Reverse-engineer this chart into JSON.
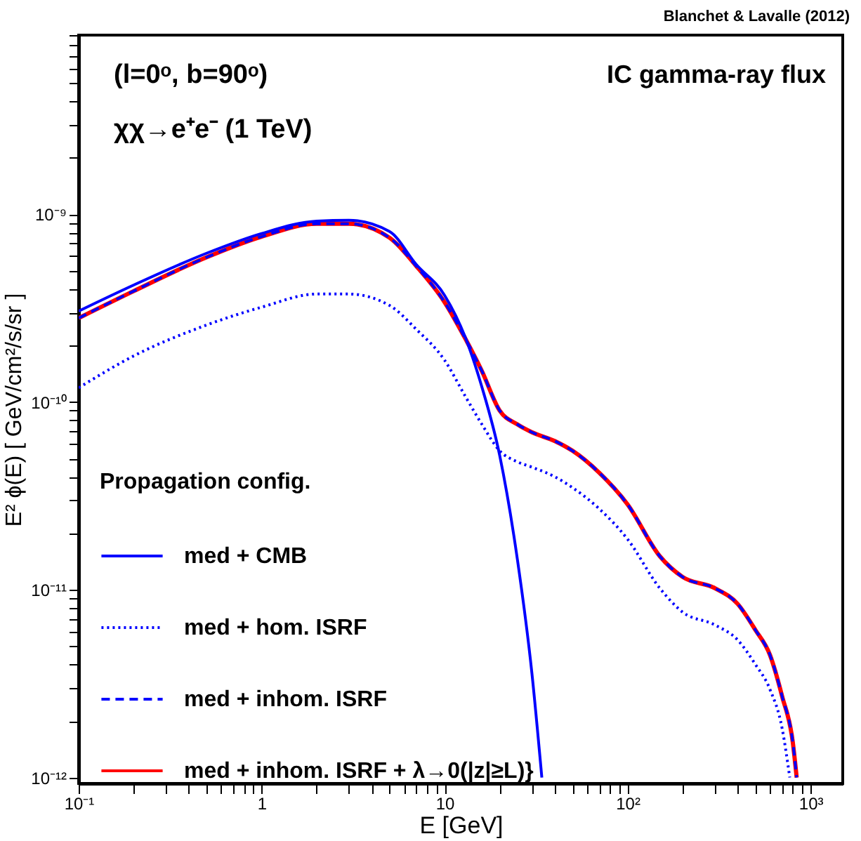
{
  "chart_data": {
    "type": "line",
    "title": "IC gamma-ray flux",
    "xlabel": "E [GeV]",
    "ylabel": "E² ϕ(E)  [ GeV/cm²/s/sr ]",
    "legend_title": "Propagation config.",
    "annotations": [
      "Blanchet & Lavalle (2012)",
      "(l=0ᵒ, b=90ᵒ)",
      "χχ→e⁺e⁻ (1 TeV)"
    ],
    "log": "xy",
    "legend": "bottom left",
    "xlim": [
      0.1,
      1500
    ],
    "ylim": [
      9.3e-13,
      9e-09
    ],
    "xticks": [
      {
        "value": 0.1,
        "label": "10⁻¹"
      },
      {
        "value": 0.2,
        "label": null
      },
      {
        "value": 0.3,
        "label": null
      },
      {
        "value": 0.4,
        "label": null
      },
      {
        "value": 0.5,
        "label": null
      },
      {
        "value": 0.6,
        "label": null
      },
      {
        "value": 0.7,
        "label": null
      },
      {
        "value": 0.8,
        "label": null
      },
      {
        "value": 0.9,
        "label": null
      },
      1,
      {
        "value": 2,
        "label": null
      },
      {
        "value": 3,
        "label": null
      },
      {
        "value": 4,
        "label": null
      },
      {
        "value": 5,
        "label": null
      },
      {
        "value": 6,
        "label": null
      },
      {
        "value": 7,
        "label": null
      },
      {
        "value": 8,
        "label": null
      },
      {
        "value": 9,
        "label": null
      },
      10,
      {
        "value": 20,
        "label": null
      },
      {
        "value": 30,
        "label": null
      },
      {
        "value": 40,
        "label": null
      },
      {
        "value": 50,
        "label": null
      },
      {
        "value": 60,
        "label": null
      },
      {
        "value": 70,
        "label": null
      },
      {
        "value": 80,
        "label": null
      },
      {
        "value": 90,
        "label": null
      },
      {
        "value": 100,
        "label": "10²"
      },
      {
        "value": 200,
        "label": null
      },
      {
        "value": 300,
        "label": null
      },
      {
        "value": 400,
        "label": null
      },
      {
        "value": 500,
        "label": null
      },
      {
        "value": 600,
        "label": null
      },
      {
        "value": 700,
        "label": null
      },
      {
        "value": 800,
        "label": null
      },
      {
        "value": 900,
        "label": null
      },
      {
        "value": 1000,
        "label": "10³"
      }
    ],
    "yticks": [
      {
        "value": 1e-12,
        "label": "10⁻¹²"
      },
      {
        "value": 2e-12,
        "label": null
      },
      {
        "value": 3e-12,
        "label": null
      },
      {
        "value": 4e-12,
        "label": null
      },
      {
        "value": 5e-12,
        "label": null
      },
      {
        "value": 6e-12,
        "label": null
      },
      {
        "value": 7e-12,
        "label": null
      },
      {
        "value": 8e-12,
        "label": null
      },
      {
        "value": 9e-12,
        "label": null
      },
      {
        "value": 1e-11,
        "label": "10⁻¹¹"
      },
      {
        "value": 2e-11,
        "label": null
      },
      {
        "value": 3e-11,
        "label": null
      },
      {
        "value": 4e-11,
        "label": null
      },
      {
        "value": 5e-11,
        "label": null
      },
      {
        "value": 6e-11,
        "label": null
      },
      {
        "value": 7e-11,
        "label": null
      },
      {
        "value": 8e-11,
        "label": null
      },
      {
        "value": 9e-11,
        "label": null
      },
      {
        "value": 1e-10,
        "label": "10⁻¹⁰"
      },
      {
        "value": 2e-10,
        "label": null
      },
      {
        "value": 3e-10,
        "label": null
      },
      {
        "value": 4e-10,
        "label": null
      },
      {
        "value": 5e-10,
        "label": null
      },
      {
        "value": 6e-10,
        "label": null
      },
      {
        "value": 7e-10,
        "label": null
      },
      {
        "value": 8e-10,
        "label": null
      },
      {
        "value": 9e-10,
        "label": null
      },
      {
        "value": 1e-09,
        "label": "10⁻⁹"
      },
      {
        "value": 2e-09,
        "label": null
      },
      {
        "value": 3e-09,
        "label": null
      },
      {
        "value": 4e-09,
        "label": null
      },
      {
        "value": 5e-09,
        "label": null
      },
      {
        "value": 6e-09,
        "label": null
      },
      {
        "value": 7e-09,
        "label": null
      },
      {
        "value": 8e-09,
        "label": null
      },
      {
        "value": 9e-09,
        "label": null
      }
    ],
    "series": [
      {
        "name": "med + CMB",
        "color": "#0000ff",
        "line_style": "solid",
        "x": [
          0.1,
          0.2,
          0.5,
          1,
          2,
          3,
          5,
          7,
          10,
          13,
          16,
          20,
          25,
          30,
          34
        ],
        "values": [
          3.05e-10,
          4.2e-10,
          6.2e-10,
          7.9e-10,
          9.2e-10,
          9.3e-10,
          8.1e-10,
          5.4e-10,
          3.7e-10,
          2.2e-10,
          1.2e-10,
          5.2e-11,
          1.45e-11,
          3.6e-12,
          1e-12
        ]
      },
      {
        "name": "med + hom. ISRF",
        "color": "#0000ff",
        "line_style": "dotted",
        "x": [
          0.1,
          0.2,
          0.5,
          1,
          2,
          3,
          5,
          7,
          10,
          13,
          16,
          20,
          25,
          30,
          40,
          50,
          70,
          100,
          150,
          200,
          300,
          400,
          500,
          600,
          700,
          770
        ],
        "values": [
          1.19e-10,
          1.76e-10,
          2.57e-10,
          3.2e-10,
          3.76e-10,
          3.76e-10,
          3.27e-10,
          2.44e-10,
          1.67e-10,
          1.07e-10,
          7.6e-11,
          5.5e-11,
          4.8e-11,
          4.5e-11,
          4e-11,
          3.5e-11,
          2.7e-11,
          1.86e-11,
          1.02e-11,
          7.6e-12,
          6.5e-12,
          5.4e-12,
          4e-12,
          2.95e-12,
          1.82e-12,
          1e-12
        ]
      },
      {
        "name": "med + inhom. ISRF",
        "color": "#0000ff",
        "line_style": "dashed",
        "x": [
          0.1,
          0.2,
          0.5,
          1,
          2,
          3,
          5,
          7,
          10,
          13,
          16,
          20,
          25,
          30,
          40,
          50,
          70,
          100,
          150,
          200,
          300,
          400,
          500,
          600,
          700,
          800,
          840
        ],
        "values": [
          2.8e-10,
          3.9e-10,
          5.9e-10,
          7.6e-10,
          8.9e-10,
          8.9e-10,
          7.5e-10,
          5.3e-10,
          3.4e-10,
          2.17e-10,
          1.46e-10,
          9e-11,
          7.6e-11,
          6.9e-11,
          6.2e-11,
          5.5e-11,
          4.2e-11,
          2.85e-11,
          1.51e-11,
          1.17e-11,
          1.02e-11,
          8.4e-12,
          6.1e-12,
          4.5e-12,
          2.7e-12,
          1.54e-12,
          1e-12
        ]
      },
      {
        "name": "med + inhom. ISRF + λ→0(|z|≥L)}",
        "color": "#ff0000",
        "line_style": "solid",
        "x": [
          0.1,
          0.2,
          0.5,
          1,
          2,
          3,
          5,
          7,
          10,
          13,
          16,
          20,
          25,
          30,
          40,
          50,
          70,
          100,
          150,
          200,
          300,
          400,
          500,
          600,
          700,
          800,
          840
        ],
        "values": [
          2.8e-10,
          3.9e-10,
          5.9e-10,
          7.6e-10,
          8.9e-10,
          8.9e-10,
          7.5e-10,
          5.3e-10,
          3.4e-10,
          2.17e-10,
          1.46e-10,
          9e-11,
          7.6e-11,
          6.9e-11,
          6.2e-11,
          5.5e-11,
          4.2e-11,
          2.85e-11,
          1.51e-11,
          1.17e-11,
          1.02e-11,
          8.4e-12,
          6.1e-12,
          4.5e-12,
          2.7e-12,
          1.54e-12,
          1e-12
        ]
      }
    ]
  }
}
